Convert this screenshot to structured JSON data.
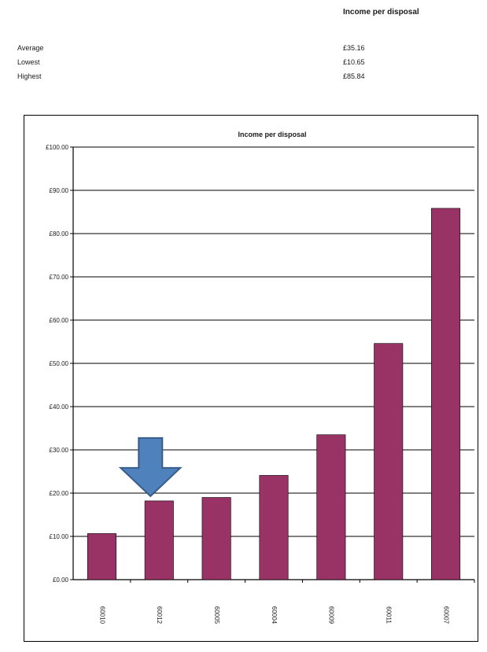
{
  "summary": {
    "title": "Income per disposal",
    "rows": [
      {
        "label": "Average",
        "value": "£35.16"
      },
      {
        "label": "Lowest",
        "value": "£10.65"
      },
      {
        "label": "Highest",
        "value": "£85.84"
      }
    ]
  },
  "chart_data": {
    "type": "bar",
    "title": "Income per disposal",
    "categories": [
      "60010",
      "60012",
      "60005",
      "60004",
      "60009",
      "60011",
      "60007"
    ],
    "values": [
      10.65,
      18.2,
      19.0,
      24.1,
      33.5,
      54.6,
      85.84
    ],
    "ylim": [
      0,
      100
    ],
    "yticks": [
      0,
      10,
      20,
      30,
      40,
      50,
      60,
      70,
      80,
      90,
      100
    ],
    "ytick_labels": [
      "£0.00",
      "£10.00",
      "£20.00",
      "£30.00",
      "£40.00",
      "£50.00",
      "£60.00",
      "£70.00",
      "£80.00",
      "£90.00",
      "£100.00"
    ],
    "grid": true,
    "bar_color": "#993366",
    "highlight_category": "60012",
    "highlight_arrow_color": "#4f81bd"
  }
}
